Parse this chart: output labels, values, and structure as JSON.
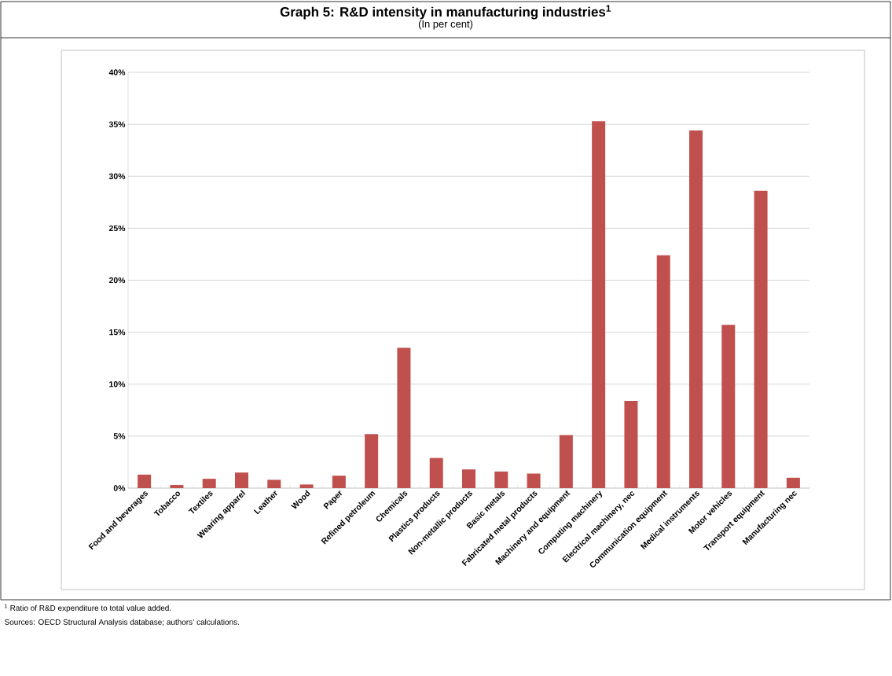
{
  "chart_data": {
    "type": "bar",
    "title": "Graph 5: R&D intensity in manufacturing industries$^{1}$",
    "subtitle": "(In per cent)",
    "categories": [
      "Food and beverages",
      "Tobacco",
      "Textiles",
      "Wearing apparel",
      "Leather",
      "Wood",
      "Paper",
      "Refined petroleum",
      "Chemicals",
      "Plastics products",
      "Non-metallic products",
      "Basic metals",
      "Fabricated metal products",
      "Machinery and equipment",
      "Computing machinery",
      "Electrical machinery, nec",
      "Communication equipment",
      "Medical instruments",
      "Motor vehicles",
      "Transport equipment",
      "Manufacturing nec"
    ],
    "values": [
      1.3,
      0.3,
      0.9,
      1.5,
      0.8,
      0.35,
      1.2,
      5.2,
      13.5,
      2.9,
      1.8,
      1.6,
      1.4,
      5.1,
      35.3,
      8.4,
      22.4,
      34.4,
      15.7,
      28.6,
      1.0
    ],
    "color": "#c0504d",
    "ylim": [
      0,
      40
    ],
    "yticks": [
      {
        "value": 0,
        "label": "0%"
      },
      {
        "value": 5,
        "label": "5%"
      },
      {
        "value": 10,
        "label": "10%"
      },
      {
        "value": 15,
        "label": "15%"
      },
      {
        "value": 20,
        "label": "20%"
      },
      {
        "value": 25,
        "label": "25%"
      },
      {
        "value": 30,
        "label": "30%"
      },
      {
        "value": 35,
        "label": "35%"
      },
      {
        "value": 40,
        "label": "40%"
      }
    ],
    "grid": "y",
    "annotations": [
      "$^{1}$ Ratio of R&D expenditure to total value added.",
      "Sources: OECD Structural Analysis database; authors’ calculations."
    ]
  }
}
